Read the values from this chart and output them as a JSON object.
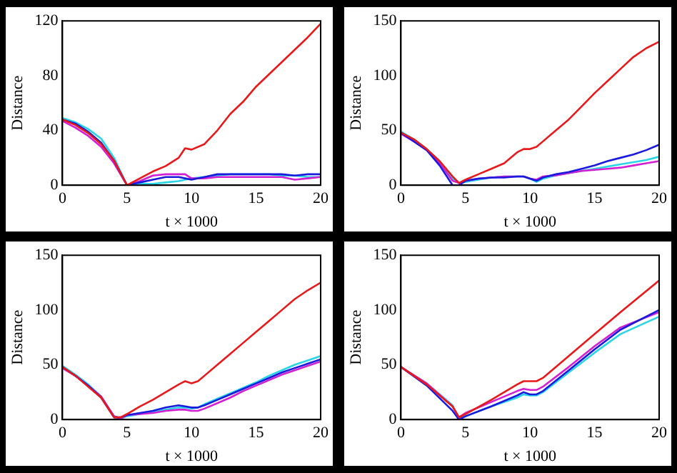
{
  "chart_data": [
    {
      "type": "line",
      "xlabel": "t × 1000",
      "ylabel": "Distance",
      "xlim": [
        0,
        20
      ],
      "xticks": [
        0,
        5,
        10,
        15,
        20
      ],
      "ylim": [
        0,
        120
      ],
      "yticks": [
        0,
        40,
        80,
        120
      ],
      "grid": false,
      "legend": false,
      "x": [
        0,
        1,
        2,
        3,
        4,
        5,
        6,
        7,
        8,
        9,
        9.5,
        10,
        11,
        12,
        13,
        14,
        15,
        16,
        17,
        18,
        19,
        20
      ],
      "series": [
        {
          "color": "#e8191b",
          "values": [
            48,
            44,
            38,
            30,
            18,
            0,
            5,
            10,
            14,
            20,
            27,
            26,
            30,
            40,
            52,
            61,
            72,
            81,
            90,
            99,
            108,
            118
          ]
        },
        {
          "color": "#1a1adf",
          "values": [
            48,
            45,
            39,
            31,
            18,
            0,
            2,
            4,
            6,
            6,
            5,
            4,
            6,
            8,
            8,
            8,
            8,
            8,
            8,
            7,
            8,
            8
          ]
        },
        {
          "color": "#d21fd2",
          "values": [
            47,
            42,
            36,
            28,
            16,
            0,
            3,
            7,
            8,
            8,
            8,
            5,
            5,
            6,
            6,
            6,
            6,
            6,
            6,
            4,
            5,
            6
          ]
        },
        {
          "color": "#2ad6e6",
          "values": [
            49,
            46,
            41,
            34,
            20,
            0,
            1,
            1,
            2,
            3,
            4,
            5,
            6,
            7,
            8,
            8,
            8,
            8,
            7,
            7,
            6,
            6
          ]
        }
      ]
    },
    {
      "type": "line",
      "xlabel": "t × 1000",
      "ylabel": "Distance",
      "xlim": [
        0,
        20
      ],
      "xticks": [
        0,
        5,
        10,
        15,
        20
      ],
      "ylim": [
        0,
        150
      ],
      "yticks": [
        0,
        50,
        100,
        150
      ],
      "grid": false,
      "legend": false,
      "x": [
        0,
        1,
        2,
        3,
        4,
        4.5,
        5,
        6,
        7,
        8,
        9,
        9.5,
        10,
        10.5,
        11,
        12,
        13,
        14,
        15,
        16,
        17,
        18,
        19,
        20
      ],
      "series": [
        {
          "color": "#e8191b",
          "values": [
            48,
            42,
            33,
            22,
            8,
            2,
            5,
            10,
            15,
            20,
            30,
            33,
            33,
            35,
            40,
            50,
            60,
            72,
            84,
            95,
            106,
            117,
            125,
            131
          ]
        },
        {
          "color": "#1a1adf",
          "values": [
            48,
            40,
            32,
            18,
            0,
            0,
            4,
            6,
            7,
            7,
            8,
            8,
            6,
            4,
            7,
            10,
            12,
            15,
            18,
            22,
            25,
            28,
            32,
            37
          ]
        },
        {
          "color": "#d21fd2",
          "values": [
            47,
            40,
            32,
            20,
            4,
            2,
            4,
            6,
            7,
            8,
            8,
            8,
            6,
            5,
            8,
            9,
            11,
            13,
            14,
            15,
            16,
            18,
            20,
            22
          ]
        },
        {
          "color": "#2ad6e6",
          "values": [
            49,
            42,
            33,
            22,
            6,
            2,
            3,
            5,
            7,
            8,
            8,
            8,
            6,
            3,
            6,
            9,
            11,
            13,
            15,
            17,
            19,
            21,
            23,
            26
          ]
        }
      ]
    },
    {
      "type": "line",
      "xlabel": "t × 1000",
      "ylabel": "Distance",
      "xlim": [
        0,
        20
      ],
      "xticks": [
        0,
        5,
        10,
        15,
        20
      ],
      "ylim": [
        0,
        150
      ],
      "yticks": [
        0,
        50,
        100,
        150
      ],
      "grid": false,
      "legend": false,
      "x": [
        0,
        1,
        2,
        3,
        4,
        4.5,
        5,
        6,
        7,
        8,
        9,
        9.5,
        10,
        10.5,
        11,
        12,
        13,
        14,
        15,
        16,
        17,
        18,
        19,
        20
      ],
      "series": [
        {
          "color": "#e8191b",
          "values": [
            48,
            40,
            30,
            20,
            2,
            2,
            5,
            12,
            18,
            25,
            32,
            35,
            33,
            35,
            40,
            50,
            60,
            70,
            80,
            90,
            100,
            110,
            118,
            125
          ]
        },
        {
          "color": "#1a1adf",
          "values": [
            48,
            40,
            31,
            20,
            2,
            2,
            4,
            6,
            8,
            11,
            13,
            12,
            11,
            11,
            13,
            18,
            23,
            28,
            33,
            38,
            43,
            47,
            51,
            55
          ]
        },
        {
          "color": "#d21fd2",
          "values": [
            47,
            40,
            31,
            21,
            3,
            1,
            4,
            5,
            6,
            8,
            9,
            9,
            8,
            8,
            10,
            15,
            20,
            26,
            31,
            36,
            41,
            45,
            49,
            53
          ]
        },
        {
          "color": "#2ad6e6",
          "values": [
            49,
            41,
            32,
            21,
            3,
            1,
            3,
            5,
            7,
            9,
            11,
            11,
            10,
            11,
            14,
            19,
            24,
            29,
            34,
            40,
            45,
            50,
            54,
            58
          ]
        }
      ]
    },
    {
      "type": "line",
      "xlabel": "t × 1000",
      "ylabel": "Distance",
      "xlim": [
        0,
        20
      ],
      "xticks": [
        0,
        5,
        10,
        15,
        20
      ],
      "ylim": [
        0,
        150
      ],
      "yticks": [
        0,
        50,
        100,
        150
      ],
      "grid": false,
      "legend": false,
      "x": [
        0,
        2,
        4,
        4.5,
        5,
        7,
        9,
        9.5,
        10,
        10.5,
        11,
        13,
        15,
        17,
        20
      ],
      "series": [
        {
          "color": "#e8191b",
          "values": [
            48,
            32,
            12,
            2,
            5,
            18,
            32,
            35,
            35,
            35,
            38,
            58,
            78,
            98,
            127
          ]
        },
        {
          "color": "#1a1adf",
          "values": [
            48,
            31,
            8,
            0,
            3,
            12,
            22,
            25,
            23,
            23,
            26,
            45,
            64,
            82,
            100
          ]
        },
        {
          "color": "#d21fd2",
          "values": [
            48,
            33,
            12,
            2,
            6,
            16,
            26,
            28,
            27,
            27,
            30,
            48,
            67,
            84,
            98
          ]
        },
        {
          "color": "#2ad6e6",
          "values": [
            48,
            33,
            13,
            1,
            3,
            12,
            20,
            23,
            22,
            22,
            25,
            43,
            61,
            78,
            94
          ]
        }
      ]
    }
  ]
}
